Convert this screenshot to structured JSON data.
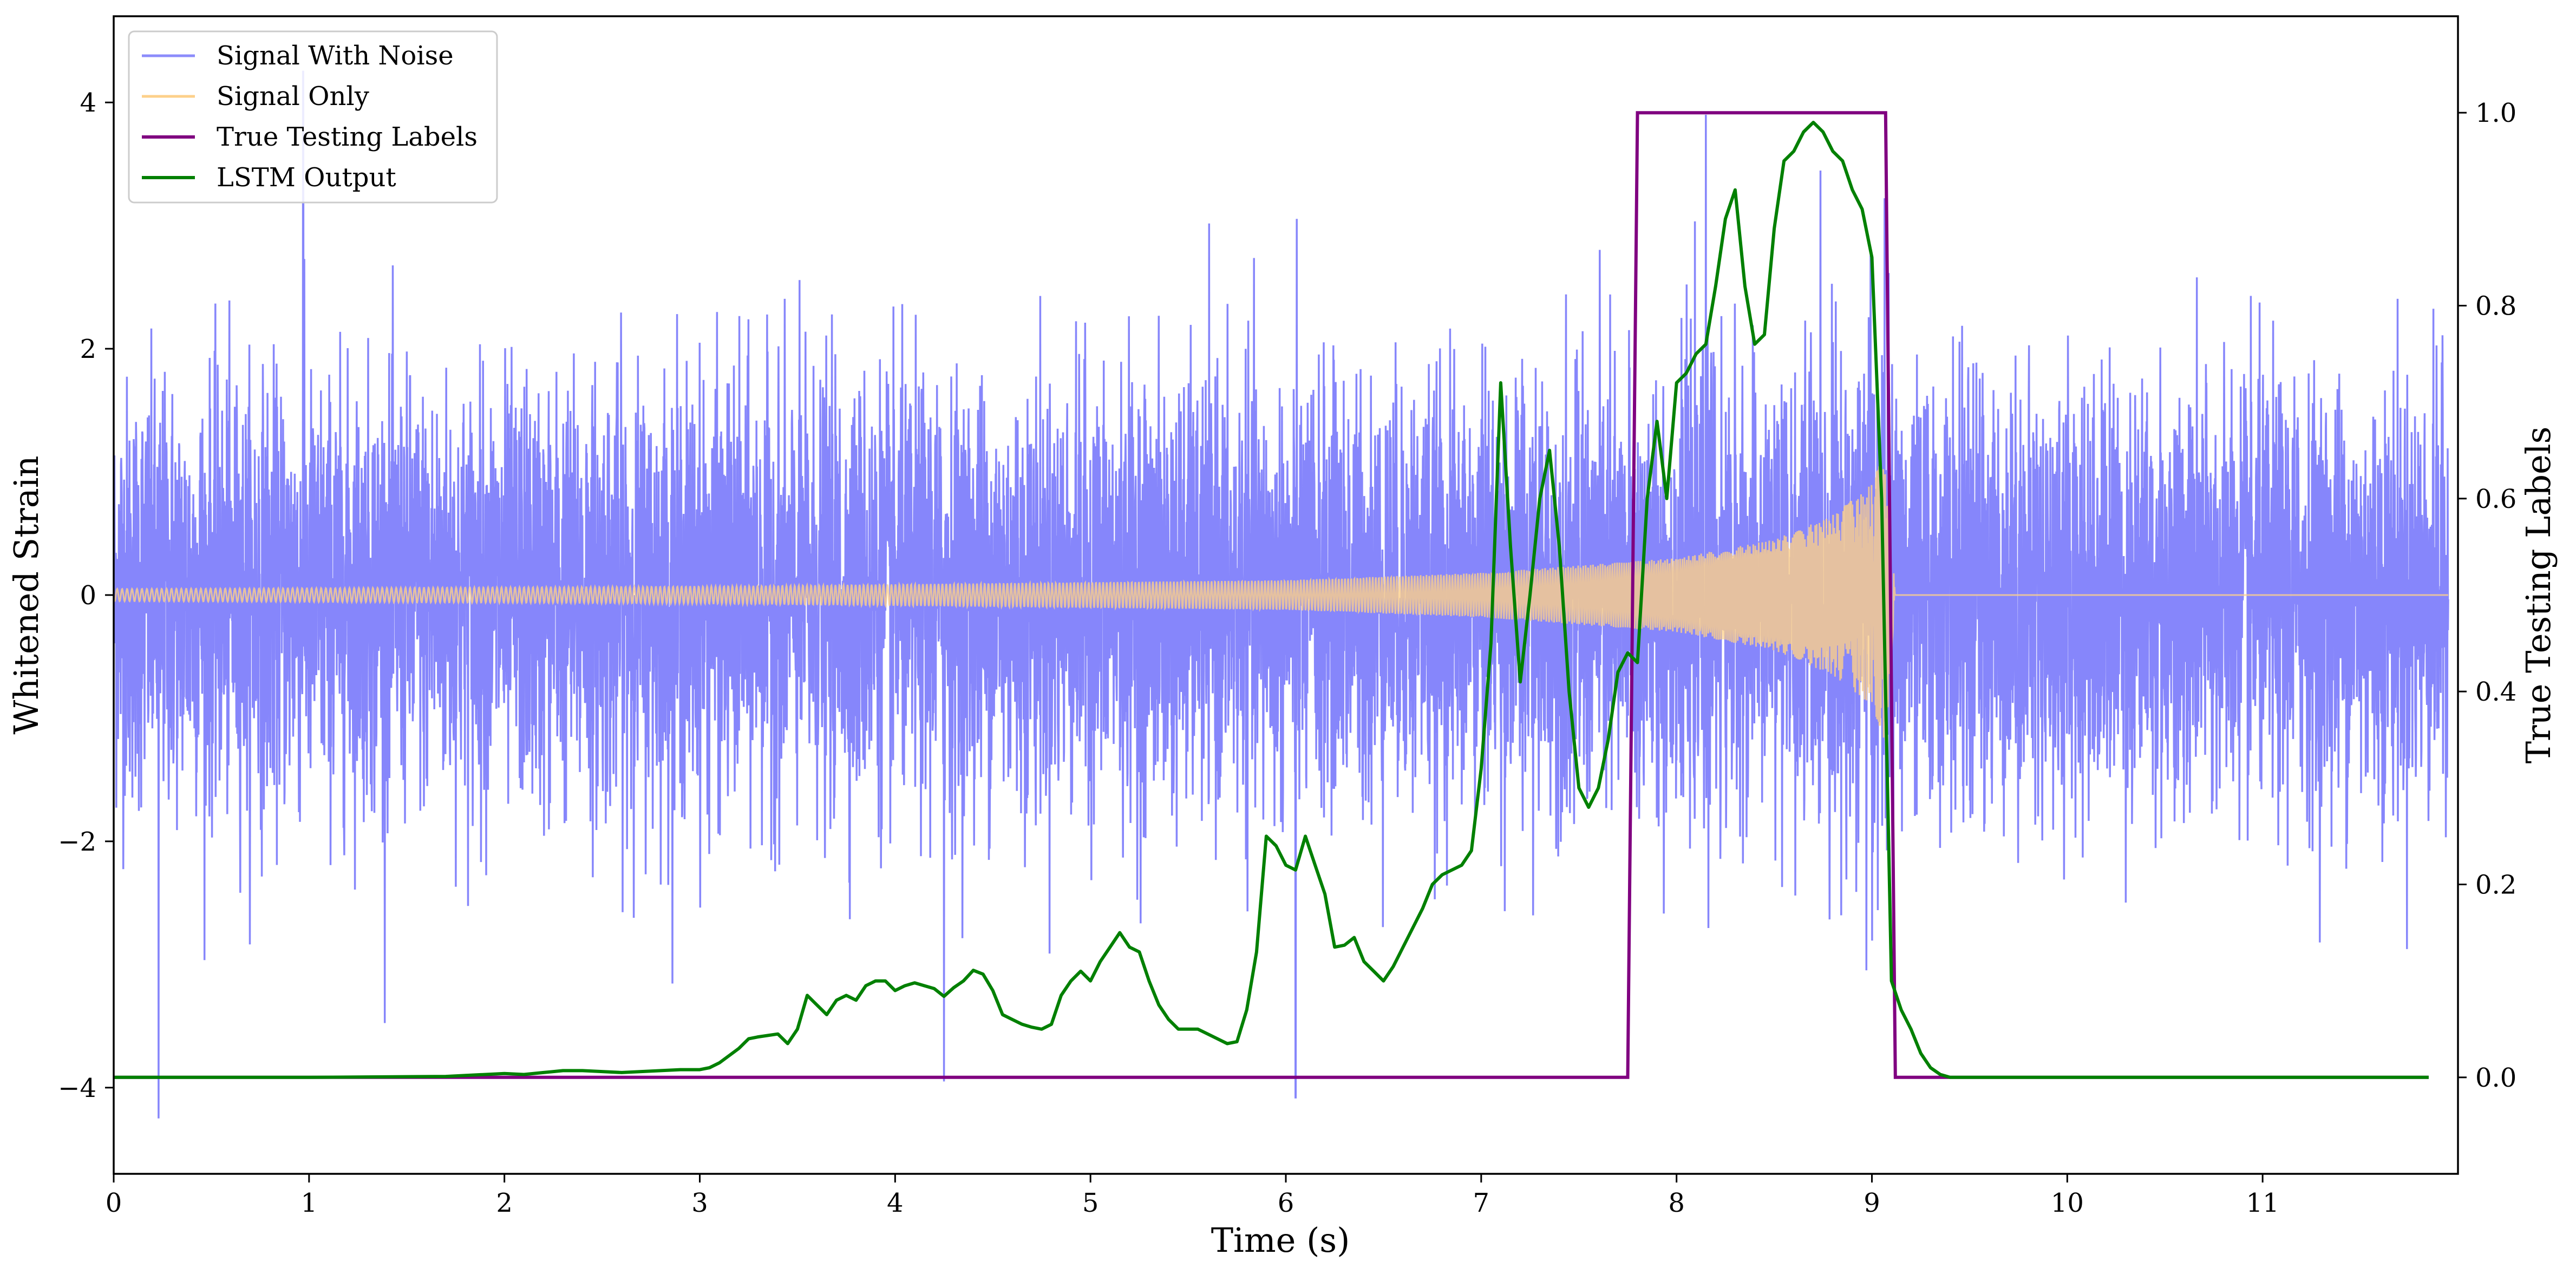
{
  "chart_data": {
    "type": "line",
    "title": "",
    "xlabel": "Time (s)",
    "ylabel": "Whitened Strain",
    "y2label": "True Testing Labels",
    "xlim": [
      0,
      12
    ],
    "ylim": [
      -4.7,
      4.7
    ],
    "y2lim": [
      -0.1,
      1.1
    ],
    "x_ticks": [
      0,
      1,
      2,
      3,
      4,
      5,
      6,
      7,
      8,
      9,
      10,
      11
    ],
    "y_ticks": [
      -4,
      -2,
      0,
      2,
      4
    ],
    "y2_ticks": [
      0.0,
      0.2,
      0.4,
      0.6,
      0.8,
      1.0
    ],
    "y_tick_labels": [
      "−4",
      "−2",
      "0",
      "2",
      "4"
    ],
    "y2_tick_labels": [
      "0.0",
      "0.2",
      "0.4",
      "0.6",
      "0.8",
      "1.0"
    ],
    "grid": false,
    "legend_position": "top-left",
    "series": [
      {
        "name": "Signal With Noise",
        "axis": "left",
        "color": "#7f7ffb",
        "description_stats": {
          "std": 0.85,
          "min": -4.25,
          "max": 4.3
        },
        "peaks": [
          [
            0.23,
            -4.25
          ],
          [
            0.97,
            4.25
          ],
          [
            4.25,
            -3.95
          ],
          [
            6.05,
            -4.08
          ],
          [
            8.15,
            3.9
          ]
        ]
      },
      {
        "name": "Signal Only",
        "axis": "left",
        "color": "#fdd08a",
        "envelope": [
          [
            0,
            0.05
          ],
          [
            3,
            0.07
          ],
          [
            6,
            0.12
          ],
          [
            7,
            0.18
          ],
          [
            8,
            0.3
          ],
          [
            8.5,
            0.45
          ],
          [
            8.8,
            0.65
          ],
          [
            9.0,
            0.9
          ],
          [
            9.07,
            1.2
          ],
          [
            9.12,
            0.0
          ],
          [
            12,
            0.0
          ]
        ],
        "merger_time": 9.12
      },
      {
        "name": "True Testing Labels",
        "axis": "right",
        "color": "#800080",
        "x": [
          0,
          7.75,
          7.8,
          9.07,
          9.12,
          11.85
        ],
        "y": [
          0,
          0,
          1,
          1,
          0,
          0
        ]
      },
      {
        "name": "LSTM Output",
        "axis": "right",
        "color": "#008000",
        "x": [
          0,
          1.0,
          1.7,
          2.0,
          2.1,
          2.2,
          2.3,
          2.4,
          2.5,
          2.6,
          2.7,
          2.8,
          2.9,
          3.0,
          3.05,
          3.1,
          3.2,
          3.25,
          3.3,
          3.4,
          3.45,
          3.5,
          3.55,
          3.6,
          3.65,
          3.7,
          3.75,
          3.8,
          3.85,
          3.9,
          3.95,
          4.0,
          4.05,
          4.1,
          4.15,
          4.2,
          4.25,
          4.3,
          4.35,
          4.4,
          4.45,
          4.5,
          4.55,
          4.6,
          4.65,
          4.7,
          4.75,
          4.8,
          4.85,
          4.9,
          4.95,
          5.0,
          5.05,
          5.1,
          5.15,
          5.2,
          5.25,
          5.3,
          5.35,
          5.4,
          5.45,
          5.5,
          5.55,
          5.6,
          5.65,
          5.7,
          5.75,
          5.8,
          5.85,
          5.9,
          5.95,
          6.0,
          6.05,
          6.1,
          6.15,
          6.2,
          6.25,
          6.3,
          6.35,
          6.4,
          6.45,
          6.5,
          6.55,
          6.6,
          6.65,
          6.7,
          6.75,
          6.8,
          6.85,
          6.9,
          6.95,
          7.0,
          7.05,
          7.1,
          7.15,
          7.2,
          7.25,
          7.3,
          7.35,
          7.4,
          7.45,
          7.5,
          7.55,
          7.6,
          7.65,
          7.7,
          7.75,
          7.8,
          7.85,
          7.9,
          7.95,
          8.0,
          8.05,
          8.1,
          8.15,
          8.2,
          8.25,
          8.3,
          8.35,
          8.4,
          8.45,
          8.5,
          8.55,
          8.6,
          8.65,
          8.7,
          8.75,
          8.8,
          8.85,
          8.9,
          8.95,
          9.0,
          9.05,
          9.1,
          9.15,
          9.2,
          9.25,
          9.3,
          9.35,
          9.4,
          9.5,
          10.0,
          11.0,
          11.85
        ],
        "y": [
          0.0,
          0.0,
          0.001,
          0.004,
          0.003,
          0.005,
          0.007,
          0.007,
          0.006,
          0.005,
          0.006,
          0.007,
          0.008,
          0.008,
          0.01,
          0.015,
          0.03,
          0.04,
          0.042,
          0.045,
          0.035,
          0.05,
          0.085,
          0.075,
          0.065,
          0.08,
          0.085,
          0.08,
          0.095,
          0.1,
          0.1,
          0.09,
          0.095,
          0.098,
          0.095,
          0.092,
          0.084,
          0.093,
          0.1,
          0.111,
          0.107,
          0.09,
          0.065,
          0.06,
          0.055,
          0.052,
          0.05,
          0.055,
          0.085,
          0.1,
          0.11,
          0.1,
          0.12,
          0.135,
          0.15,
          0.135,
          0.13,
          0.1,
          0.075,
          0.06,
          0.05,
          0.05,
          0.05,
          0.045,
          0.04,
          0.035,
          0.037,
          0.07,
          0.13,
          0.25,
          0.24,
          0.22,
          0.215,
          0.25,
          0.22,
          0.19,
          0.135,
          0.137,
          0.145,
          0.12,
          0.11,
          0.1,
          0.115,
          0.135,
          0.155,
          0.175,
          0.2,
          0.21,
          0.215,
          0.22,
          0.235,
          0.32,
          0.45,
          0.72,
          0.55,
          0.41,
          0.5,
          0.6,
          0.65,
          0.55,
          0.4,
          0.3,
          0.28,
          0.3,
          0.35,
          0.42,
          0.44,
          0.43,
          0.6,
          0.68,
          0.6,
          0.72,
          0.73,
          0.75,
          0.76,
          0.82,
          0.89,
          0.92,
          0.82,
          0.76,
          0.77,
          0.88,
          0.95,
          0.96,
          0.98,
          0.99,
          0.98,
          0.96,
          0.95,
          0.92,
          0.9,
          0.85,
          0.6,
          0.1,
          0.07,
          0.05,
          0.025,
          0.01,
          0.003,
          0.0,
          0.0,
          0.0,
          0.0,
          0.0
        ]
      }
    ]
  }
}
